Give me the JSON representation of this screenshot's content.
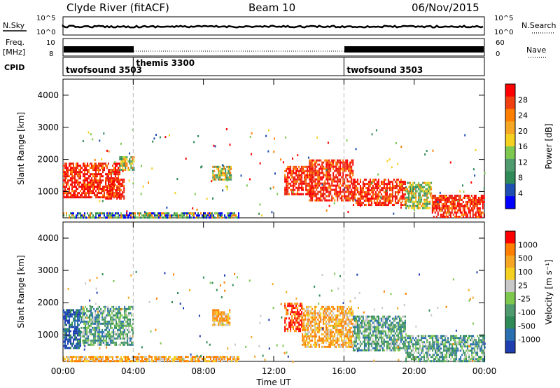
{
  "header": {
    "station": "Clyde River (fitACF)",
    "beam": "Beam 10",
    "date": "06/Nov/2015"
  },
  "top_panels": {
    "nsky_label": "N.Sky",
    "nsky_ticks": [
      "10^5",
      "10^0"
    ],
    "nsearch_label": "N.Search",
    "nsearch_ticks": [
      "10^5",
      "10^0"
    ],
    "freq_label_1": "Freq.",
    "freq_label_2": "[MHz]",
    "freq_ticks": [
      "10",
      "8"
    ],
    "nave_label": "Nave",
    "nave_ticks": [
      "60",
      "0"
    ],
    "cpid_label": "CPID"
  },
  "chart_data": [
    {
      "type": "heatmap",
      "name": "Power",
      "xlabel": "",
      "ylabel": "Slant Range [km]",
      "x_ticks": [
        "00:00",
        "04:00",
        "08:00",
        "12:00",
        "16:00",
        "20:00",
        "00:00"
      ],
      "y_ticks": [
        "1000",
        "2000",
        "3000",
        "4000"
      ],
      "ylim": [
        180,
        4500
      ],
      "colorbar": {
        "label": "Power [dB]",
        "ticks": [
          "4",
          "8",
          "12",
          "16",
          "20",
          "24",
          "28"
        ],
        "colors": [
          "#0000ff",
          "#1f4fb0",
          "#2e8b57",
          "#4f9a6e",
          "#7ec850",
          "#f4d020",
          "#f5a623",
          "#ff7f00",
          "#f04010",
          "#ff0000"
        ]
      },
      "modes": [
        {
          "label": "twofsound 3503",
          "start_h": 0,
          "end_h": 4
        },
        {
          "label": "themis 3300",
          "start_h": 4,
          "end_h": 16
        },
        {
          "label": "twofsound 3503",
          "start_h": 16,
          "end_h": 24
        }
      ],
      "regions": [
        {
          "t0": 0.0,
          "t1": 3.2,
          "r0": 800,
          "r1": 1900,
          "level": "high"
        },
        {
          "t0": 2.4,
          "t1": 3.5,
          "r0": 750,
          "r1": 1400,
          "level": "high"
        },
        {
          "t0": 3.2,
          "t1": 4.0,
          "r0": 1700,
          "r1": 2100,
          "level": "mid"
        },
        {
          "t0": 8.5,
          "t1": 9.6,
          "r0": 1400,
          "r1": 1800,
          "level": "mid"
        },
        {
          "t0": 12.6,
          "t1": 14.2,
          "r0": 900,
          "r1": 1800,
          "level": "high"
        },
        {
          "t0": 14.0,
          "t1": 16.5,
          "r0": 700,
          "r1": 2000,
          "level": "high"
        },
        {
          "t0": 16.5,
          "t1": 19.5,
          "r0": 600,
          "r1": 1400,
          "level": "high"
        },
        {
          "t0": 19.5,
          "t1": 21.0,
          "r0": 500,
          "r1": 1300,
          "level": "mid"
        },
        {
          "t0": 21.0,
          "t1": 24.0,
          "r0": 200,
          "r1": 900,
          "level": "high"
        },
        {
          "t0": 0.0,
          "t1": 10.0,
          "r0": 180,
          "r1": 350,
          "level": "low"
        }
      ]
    },
    {
      "type": "heatmap",
      "name": "Velocity",
      "xlabel": "Time UT",
      "ylabel": "Slant Range [km]",
      "x_ticks": [
        "00:00",
        "04:00",
        "08:00",
        "12:00",
        "16:00",
        "20:00",
        "00:00"
      ],
      "y_ticks": [
        "1000",
        "2000",
        "3000",
        "4000"
      ],
      "ylim": [
        180,
        4500
      ],
      "colorbar": {
        "label": "Velocity [m s⁻¹]",
        "ticks": [
          "1000",
          "500",
          "100",
          "25",
          "-25",
          "-100",
          "-500",
          "-1000"
        ],
        "colors": [
          "#1f3fb0",
          "#2a6fb0",
          "#2e8b57",
          "#4f9a6e",
          "#7ec850",
          "#c8c8c8",
          "#f4d020",
          "#f5a623",
          "#ff7f00",
          "#ff0000"
        ]
      },
      "regions": [
        {
          "t0": 0.0,
          "t1": 1.0,
          "r0": 600,
          "r1": 1800,
          "level": "blue"
        },
        {
          "t0": 1.0,
          "t1": 4.0,
          "r0": 700,
          "r1": 1900,
          "level": "green"
        },
        {
          "t0": 8.5,
          "t1": 9.5,
          "r0": 1300,
          "r1": 1800,
          "level": "orange"
        },
        {
          "t0": 12.6,
          "t1": 13.6,
          "r0": 1100,
          "r1": 2000,
          "level": "red"
        },
        {
          "t0": 13.6,
          "t1": 16.5,
          "r0": 600,
          "r1": 1900,
          "level": "orange"
        },
        {
          "t0": 16.5,
          "t1": 19.5,
          "r0": 500,
          "r1": 1600,
          "level": "green"
        },
        {
          "t0": 19.5,
          "t1": 24.0,
          "r0": 200,
          "r1": 1000,
          "level": "green"
        },
        {
          "t0": 0.0,
          "t1": 10.0,
          "r0": 180,
          "r1": 350,
          "level": "orange"
        }
      ]
    }
  ]
}
